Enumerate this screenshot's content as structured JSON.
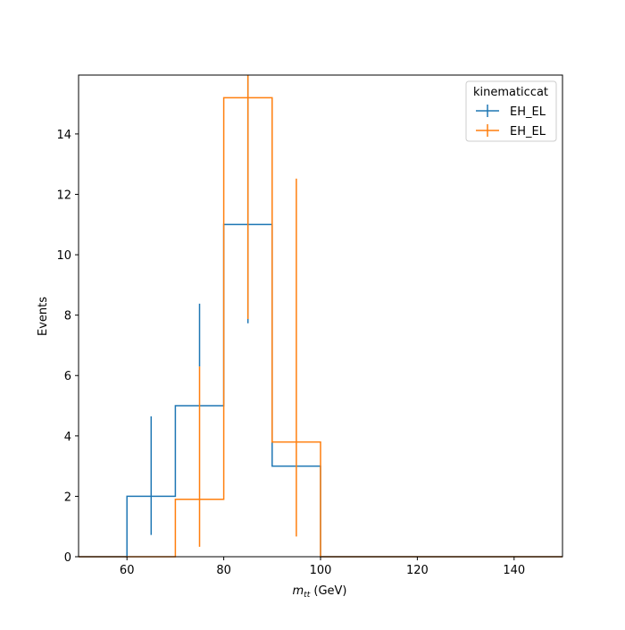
{
  "chart_data": {
    "type": "step-histogram-with-errorbars",
    "xlabel_main": "m",
    "xlabel_sub": "tt",
    "xlabel_unit": " (GeV)",
    "ylabel": "Events",
    "xlim": [
      50,
      150
    ],
    "ylim": [
      0,
      15.95
    ],
    "xticks": [
      60,
      80,
      100,
      120,
      140
    ],
    "yticks": [
      0,
      2,
      4,
      6,
      8,
      10,
      12,
      14
    ],
    "grid": false,
    "legend": {
      "title": "kinematiccat",
      "placement": "top-right"
    },
    "bin_edges": [
      50,
      60,
      70,
      80,
      90,
      100,
      110,
      120,
      130,
      140,
      150
    ],
    "series": [
      {
        "name": "EH_EL",
        "color": "#1f77b4",
        "values": [
          0,
          2.0,
          5.0,
          11.0,
          3.0,
          0,
          0,
          0,
          0,
          0
        ],
        "errors": [
          {
            "x": 65,
            "low": 0.72,
            "high": 4.65
          },
          {
            "x": 75,
            "low": 6.3,
            "high": 8.38
          },
          {
            "x": 85,
            "low": 7.73,
            "high": 15.95
          }
        ]
      },
      {
        "name": "EH_EL",
        "color": "#ff7f0e",
        "values": [
          0,
          0,
          1.9,
          15.2,
          3.8,
          0,
          0,
          0,
          0,
          0
        ],
        "errors": [
          {
            "x": 75,
            "low": 0.33,
            "high": 6.3
          },
          {
            "x": 85,
            "low": 7.87,
            "high": 15.95
          },
          {
            "x": 95,
            "low": 0.67,
            "high": 12.52
          }
        ]
      }
    ]
  }
}
